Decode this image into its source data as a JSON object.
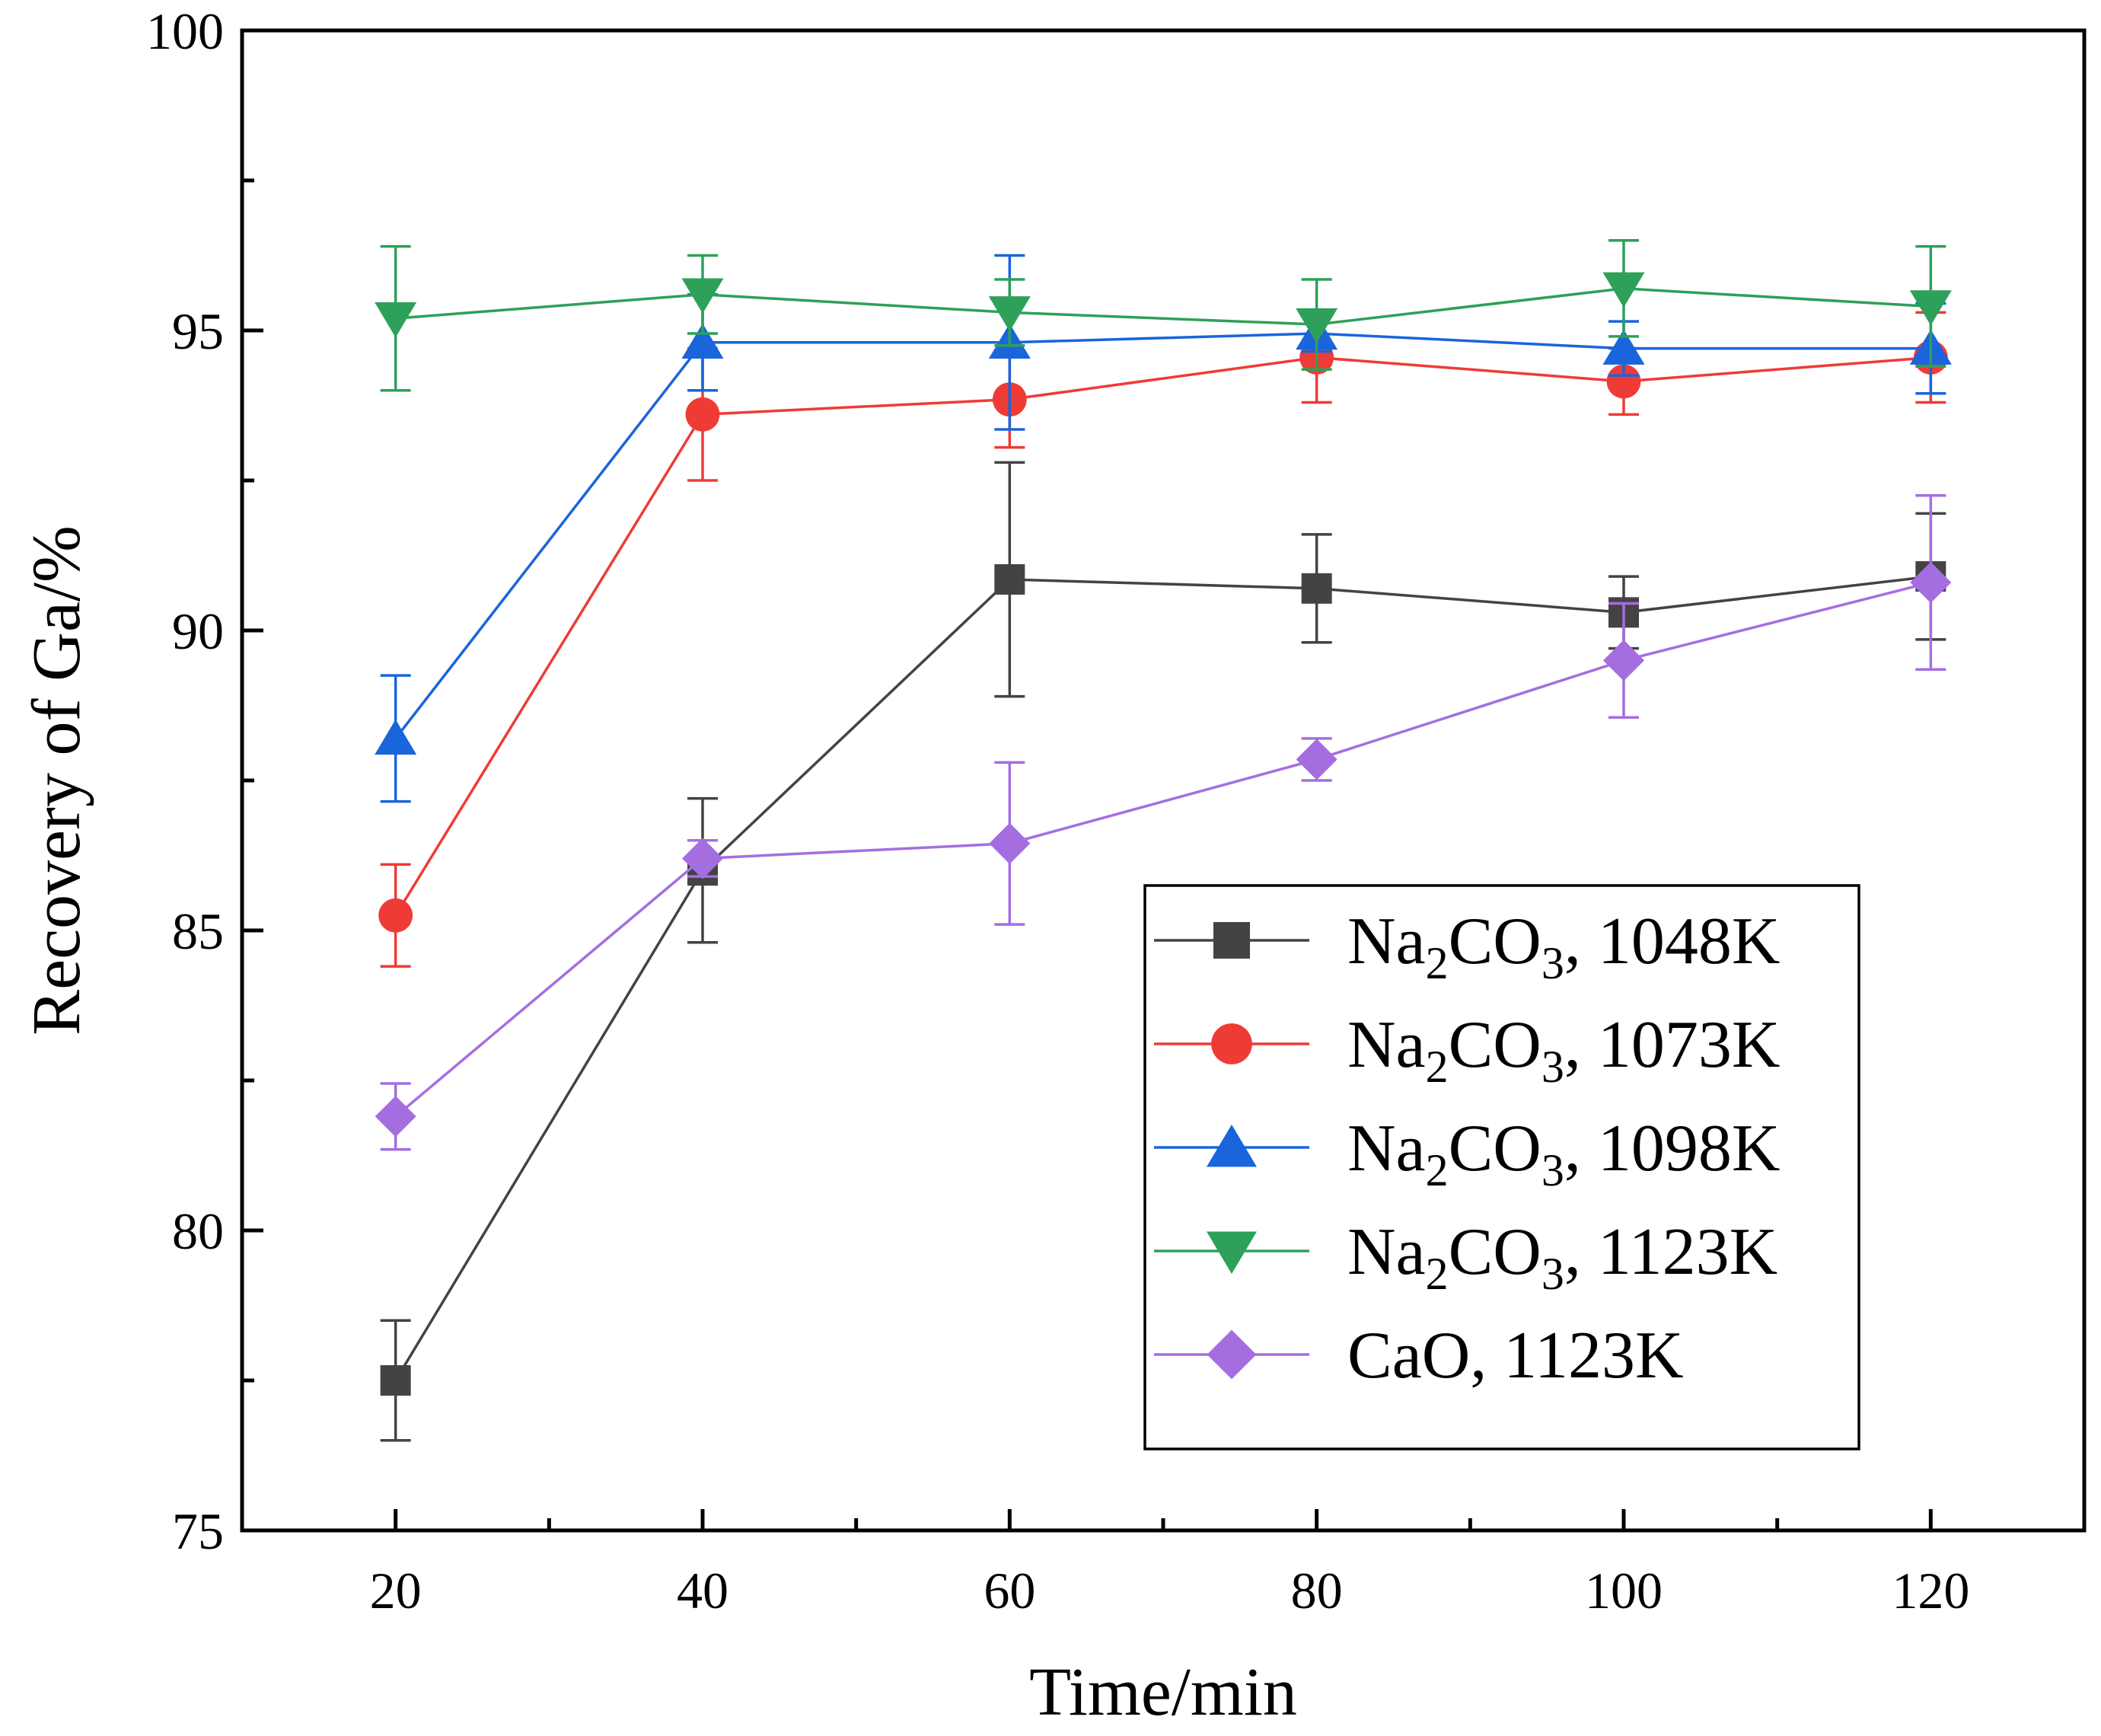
{
  "chart_data": {
    "type": "line",
    "title": "",
    "xlabel": "Time/min",
    "ylabel": "Recovery of Ga/%",
    "xlim": [
      10,
      130
    ],
    "ylim": [
      75,
      100
    ],
    "x_ticks": [
      20,
      40,
      60,
      80,
      100,
      120
    ],
    "x_tick_labels": [
      "20",
      "40",
      "60",
      "80",
      "100",
      "120"
    ],
    "y_ticks": [
      75,
      80,
      85,
      90,
      95,
      100
    ],
    "y_tick_labels": [
      "75",
      "80",
      "85",
      "90",
      "95",
      "100"
    ],
    "legend_position": "lower-right",
    "x": [
      20,
      40,
      60,
      80,
      100,
      120
    ],
    "series": [
      {
        "name": "Na2CO3, 1048K",
        "legend_label": {
          "pre": "Na",
          "s1": "2",
          "mid": "CO",
          "s2": "3",
          "post": ", 1048K"
        },
        "color": "#434343",
        "marker": "square",
        "values": [
          77.5,
          86.0,
          90.85,
          90.7,
          90.3,
          90.9
        ],
        "errors": [
          1.0,
          1.2,
          1.95,
          0.9,
          0.6,
          1.05
        ]
      },
      {
        "name": "Na2CO3, 1073K",
        "legend_label": {
          "pre": "Na",
          "s1": "2",
          "mid": "CO",
          "s2": "3",
          "post": ", 1073K"
        },
        "color": "#ef3b36",
        "marker": "circle",
        "values": [
          85.25,
          93.6,
          93.85,
          94.55,
          94.15,
          94.55
        ],
        "errors": [
          0.85,
          1.1,
          0.8,
          0.75,
          0.55,
          0.75
        ]
      },
      {
        "name": "Na2CO3, 1098K",
        "legend_label": {
          "pre": "Na",
          "s1": "2",
          "mid": "CO",
          "s2": "3",
          "post": ", 1098K"
        },
        "color": "#1a64dc",
        "marker": "triangle-up",
        "values": [
          88.2,
          94.8,
          94.8,
          94.95,
          94.7,
          94.7
        ],
        "errors": [
          1.05,
          0.8,
          1.45,
          0.3,
          0.45,
          0.75
        ]
      },
      {
        "name": "Na2CO3, 1123K",
        "legend_label": {
          "pre": "Na",
          "s1": "2",
          "mid": "CO",
          "s2": "3",
          "post": ", 1123K"
        },
        "color": "#2ea05a",
        "marker": "triangle-down",
        "values": [
          95.2,
          95.6,
          95.3,
          95.1,
          95.7,
          95.4
        ],
        "errors": [
          1.2,
          0.65,
          0.55,
          0.75,
          0.8,
          1.0
        ]
      },
      {
        "name": "CaO, 1123K",
        "legend_label": {
          "pre": "CaO, 1123K",
          "s1": "",
          "mid": "",
          "s2": "",
          "post": ""
        },
        "color": "#a46ee0",
        "marker": "diamond",
        "values": [
          81.9,
          86.2,
          86.45,
          87.85,
          89.5,
          90.8
        ],
        "errors": [
          0.55,
          0.3,
          1.35,
          0.35,
          0.95,
          1.45
        ]
      }
    ]
  }
}
